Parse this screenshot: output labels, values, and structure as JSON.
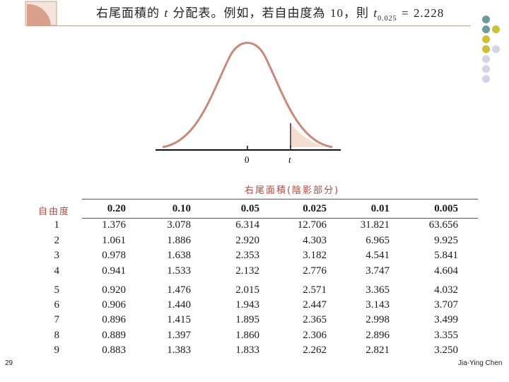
{
  "title": {
    "prefix": "右尾面積的",
    "var": "t",
    "middle": "分配表。例如，若自由度為",
    "df": "10",
    "then": "，則",
    "var2": "t",
    "sub": "0.025",
    "equals": "=",
    "value": "2.228"
  },
  "figure": {
    "axis_zero": "0",
    "axis_t": "t"
  },
  "table": {
    "area_label": "右尾面積(陰影部分)",
    "df_label": "自由度",
    "headers": [
      "0.20",
      "0.10",
      "0.05",
      "0.025",
      "0.01",
      "0.005"
    ],
    "rows": [
      {
        "df": "1",
        "values": [
          "1.376",
          "3.078",
          "6.314",
          "12.706",
          "31.821",
          "63.656"
        ]
      },
      {
        "df": "2",
        "values": [
          "1.061",
          "1.886",
          "2.920",
          "4.303",
          "6.965",
          "9.925"
        ]
      },
      {
        "df": "3",
        "values": [
          "0.978",
          "1.638",
          "2.353",
          "3.182",
          "4.541",
          "5.841"
        ]
      },
      {
        "df": "4",
        "values": [
          "0.941",
          "1.533",
          "2.132",
          "2.776",
          "3.747",
          "4.604"
        ]
      },
      {
        "df": "5",
        "values": [
          "0.920",
          "1.476",
          "2.015",
          "2.571",
          "3.365",
          "4.032"
        ]
      },
      {
        "df": "6",
        "values": [
          "0.906",
          "1.440",
          "1.943",
          "2.447",
          "3.143",
          "3.707"
        ]
      },
      {
        "df": "7",
        "values": [
          "0.896",
          "1.415",
          "1.895",
          "2.365",
          "2.998",
          "3.499"
        ]
      },
      {
        "df": "8",
        "values": [
          "0.889",
          "1.397",
          "1.860",
          "2.306",
          "2.896",
          "3.355"
        ]
      },
      {
        "df": "9",
        "values": [
          "0.883",
          "1.383",
          "1.833",
          "2.262",
          "2.821",
          "3.250"
        ]
      }
    ]
  },
  "footer": {
    "page_number": "29",
    "author": "Jia-Ying Chen"
  },
  "colors": {
    "accent_red": "#b5463c",
    "tab_fill": "#d9a08c",
    "dot_teal": "#6e9a9c",
    "dot_olive": "#c9c13a",
    "dot_lavender": "#d4d4e6"
  }
}
